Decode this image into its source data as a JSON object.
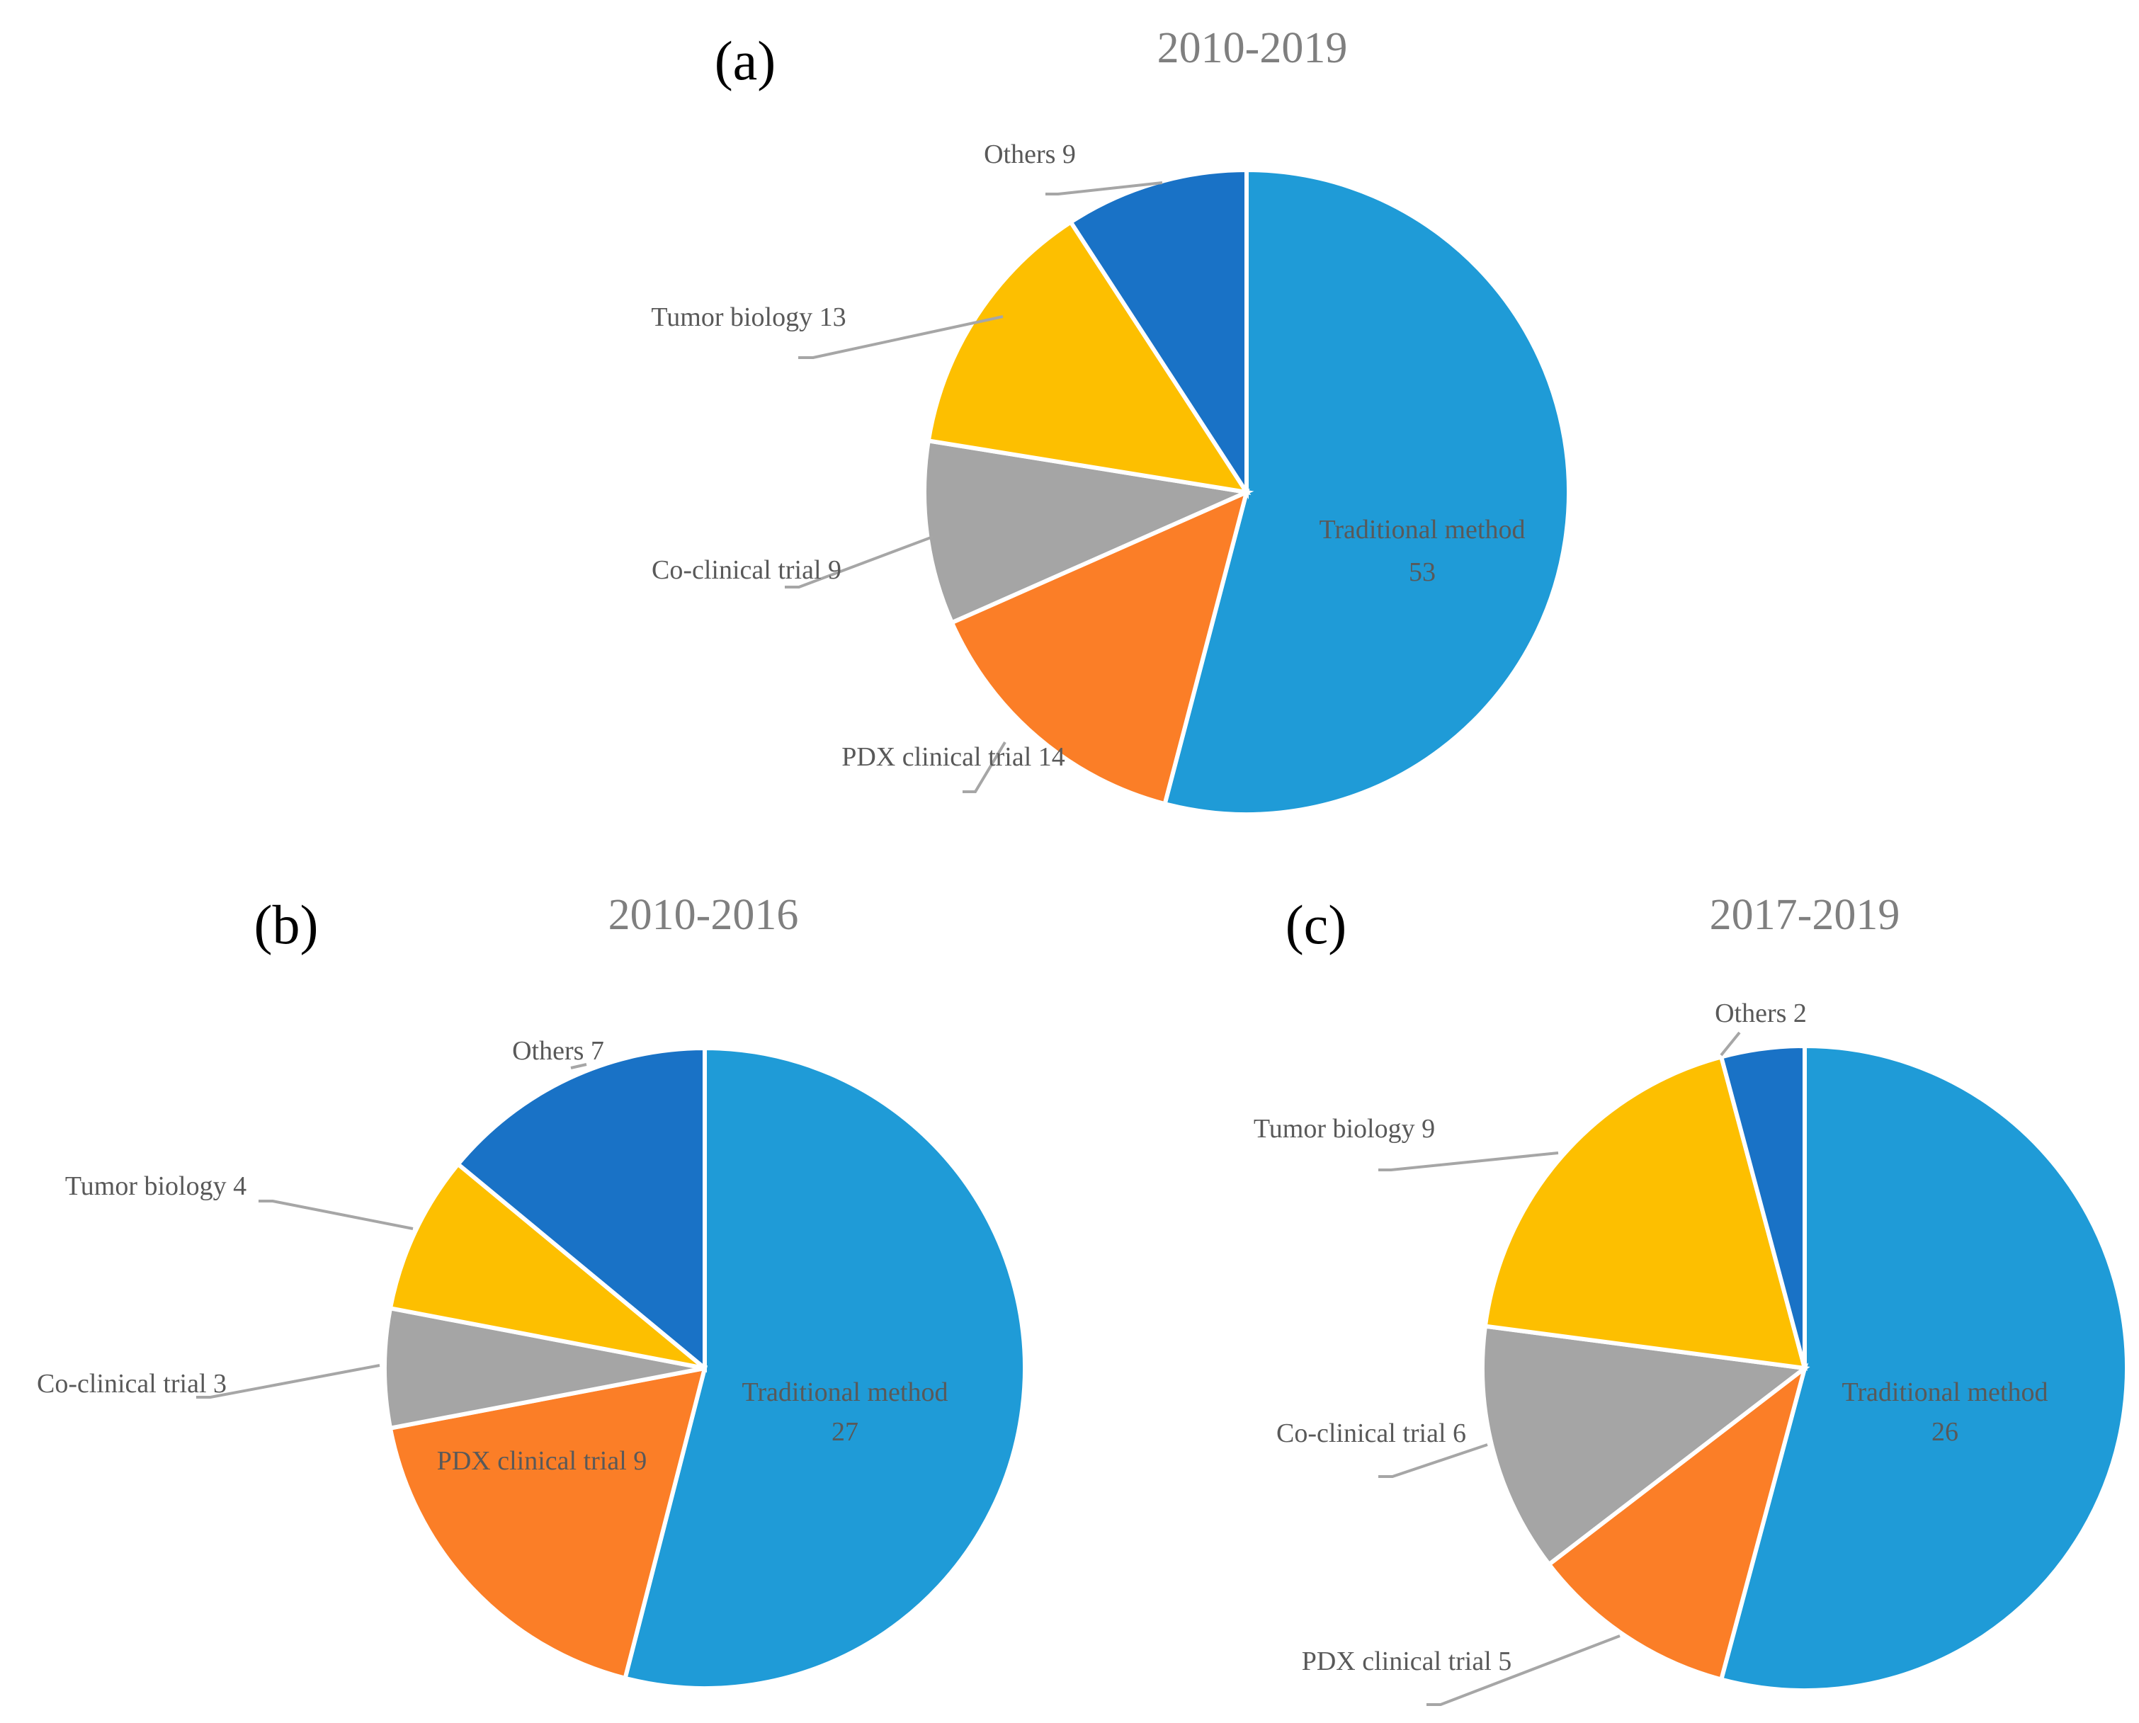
{
  "colors": {
    "Traditional method": "#1F9BD7",
    "PDX clinical trial": "#FB7E27",
    "Co-clinical trial": "#A5A5A5",
    "Tumor biology": "#FDBF00",
    "Others": "#1972C6"
  },
  "chart_data": [
    {
      "type": "pie",
      "panel": "(a)",
      "title": "2010-2019",
      "start_angle": "12 o'clock, clockwise",
      "slices": [
        {
          "category": "Traditional method",
          "value": 53,
          "label": "Traditional method",
          "value_label": "53",
          "label_position": "inside"
        },
        {
          "category": "PDX clinical trial",
          "value": 14,
          "label": "PDX clinical trial 14",
          "label_position": "outside"
        },
        {
          "category": "Co-clinical trial",
          "value": 9,
          "label": "Co-clinical  trial 9",
          "label_position": "outside"
        },
        {
          "category": "Tumor biology",
          "value": 13,
          "label": "Tumor biology  13",
          "label_position": "outside"
        },
        {
          "category": "Others",
          "value": 9,
          "label": "Others 9",
          "label_position": "outside"
        }
      ]
    },
    {
      "type": "pie",
      "panel": "(b)",
      "title": "2010-2016",
      "start_angle": "12 o'clock, clockwise",
      "slices": [
        {
          "category": "Traditional method",
          "value": 27,
          "label": "Traditional method",
          "value_label": "27",
          "label_position": "inside"
        },
        {
          "category": "PDX clinical trial",
          "value": 9,
          "label": "PDX clinical trial 9",
          "label_position": "inside"
        },
        {
          "category": "Co-clinical trial",
          "value": 3,
          "label": "Co-clinical  trial 3",
          "label_position": "outside"
        },
        {
          "category": "Tumor biology",
          "value": 4,
          "label": "Tumor biology  4",
          "label_position": "outside"
        },
        {
          "category": "Others",
          "value": 7,
          "label": "Others 7",
          "label_position": "outside"
        }
      ]
    },
    {
      "type": "pie",
      "panel": "(c)",
      "title": "2017-2019",
      "start_angle": "12 o'clock, clockwise",
      "slices": [
        {
          "category": "Traditional method",
          "value": 26,
          "label": "Traditional method",
          "value_label": "26",
          "label_position": "inside"
        },
        {
          "category": "PDX clinical trial",
          "value": 5,
          "label": "PDX clinical trial 5",
          "label_position": "outside"
        },
        {
          "category": "Co-clinical trial",
          "value": 6,
          "label": "Co-clinical  trial 6",
          "label_position": "outside"
        },
        {
          "category": "Tumor biology",
          "value": 9,
          "label": "Tumor biology  9",
          "label_position": "outside"
        },
        {
          "category": "Others",
          "value": 2,
          "label": "Others 2",
          "label_position": "outside"
        }
      ]
    }
  ]
}
